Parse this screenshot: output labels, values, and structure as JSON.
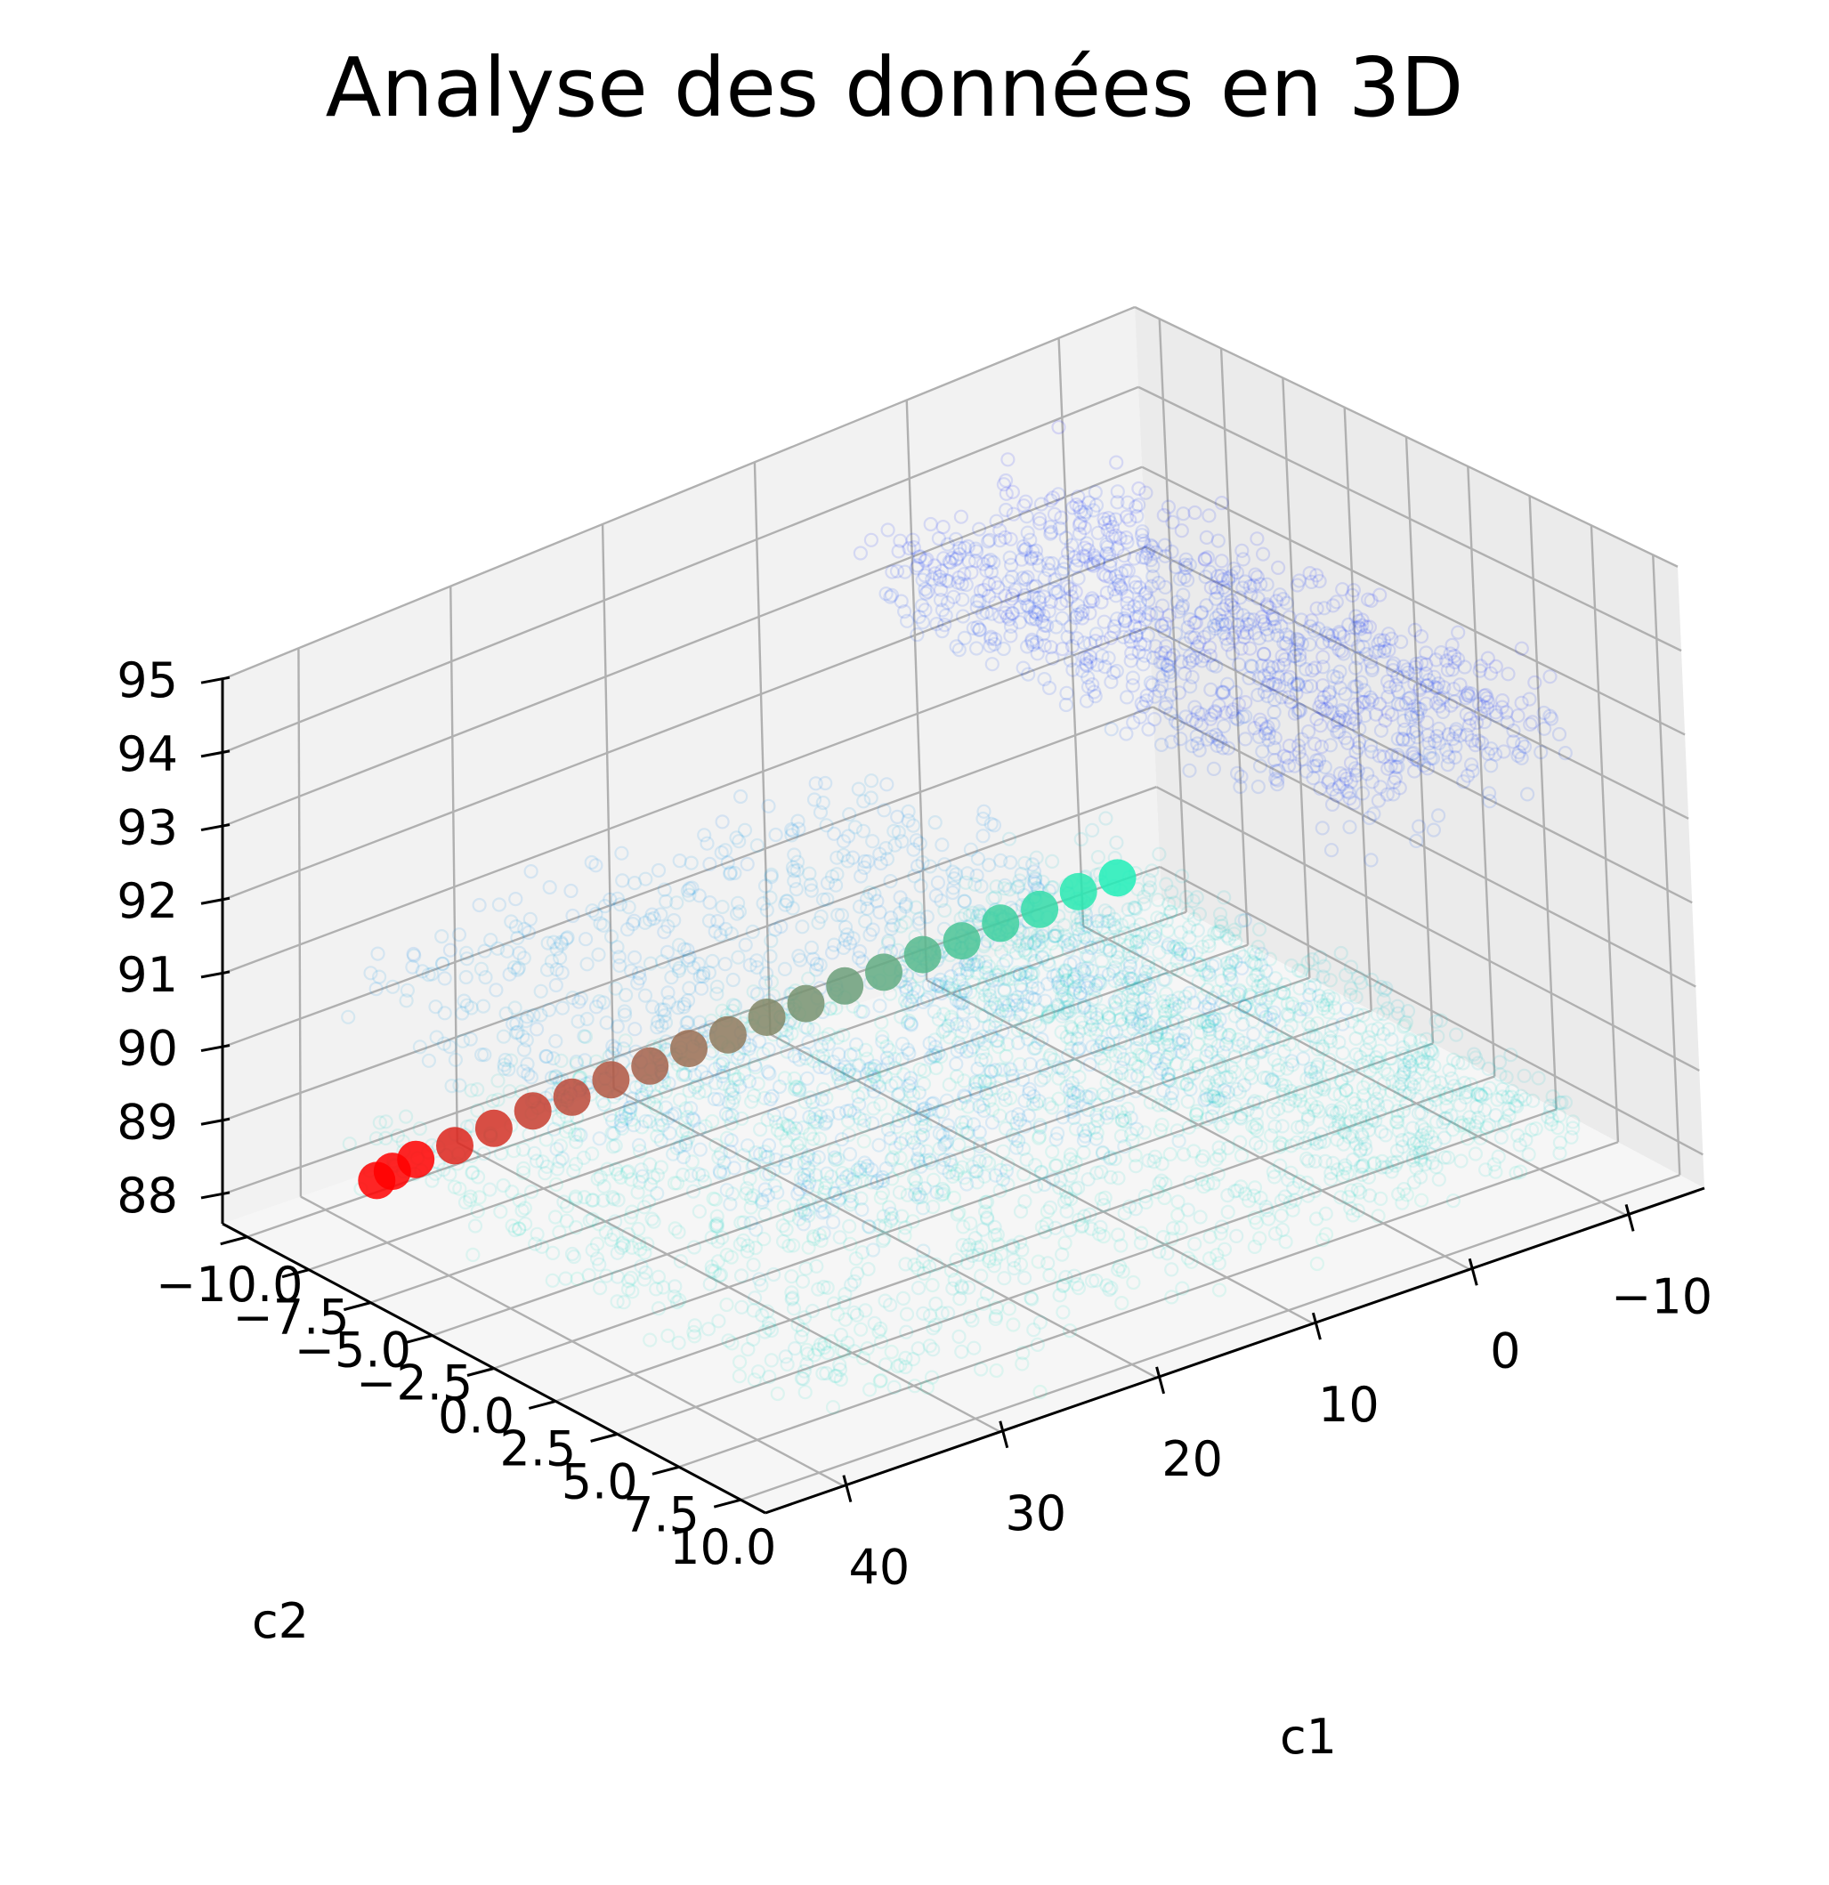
{
  "chart_data": {
    "type": "scatter",
    "projection": "3d",
    "title": "Analyse des données en 3D",
    "xlabel": "c1",
    "ylabel": "c2",
    "zlabel": "",
    "xlim": [
      -15,
      45
    ],
    "ylim": [
      -11,
      11
    ],
    "zlim": [
      87.6,
      95
    ],
    "x_ticks": [
      -10,
      0,
      10,
      20,
      30,
      40
    ],
    "x_tick_labels": [
      "−10",
      "0",
      "10",
      "20",
      "30",
      "40"
    ],
    "y_ticks": [
      -10,
      -7.5,
      -5,
      -2.5,
      0,
      2.5,
      5,
      7.5,
      10
    ],
    "y_tick_labels": [
      "−10.0",
      "−7.5",
      "−5.0",
      "−2.5",
      "0.0",
      "2.5",
      "5.0",
      "7.5",
      "10.0"
    ],
    "z_ticks": [
      88,
      89,
      90,
      91,
      92,
      93,
      94,
      95
    ],
    "z_tick_labels": [
      "88",
      "89",
      "90",
      "91",
      "92",
      "93",
      "94",
      "95"
    ],
    "grid": true,
    "colormap": [
      "#0000ff",
      "#0088ee",
      "#22f0b8",
      "#ff0000"
    ],
    "series": [
      {
        "marker": "scatter-cloud",
        "color_scale": "z",
        "regions": [
          {
            "x_range": [
              -10,
              5
            ],
            "y_range": [
              -10,
              10
            ],
            "z_center": 93.3,
            "z_spread": 0.6
          },
          {
            "x_range": [
              5,
              40
            ],
            "y_range": [
              -10,
              10
            ],
            "z_center": 90.6,
            "z_spread": 0.6
          },
          {
            "x_range": [
              -10,
              5
            ],
            "y_range": [
              -10,
              10
            ],
            "z_center": 88.6,
            "z_spread": 0.45
          },
          {
            "x_range": [
              5,
              40
            ],
            "y_range": [
              -10,
              10
            ],
            "z_center": 88.4,
            "z_spread": 0.4
          }
        ]
      },
      {
        "marker": "large-dot",
        "x": [
          -10.0,
          -7.5,
          -5.0,
          -2.5,
          0.0,
          2.5,
          5.0,
          7.5,
          10.0,
          12.5,
          15.0,
          17.5,
          20.0,
          22.5,
          25.0,
          27.5,
          30.0,
          32.5,
          35.0,
          36.5,
          37.5
        ],
        "y": [
          -9.5,
          -9.5,
          -9.5,
          -9.5,
          -9.5,
          -9.5,
          -9.5,
          -9.5,
          -9.5,
          -9.5,
          -9.5,
          -9.5,
          -9.5,
          -9.5,
          -9.5,
          -9.5,
          -9.5,
          -9.5,
          -9.5,
          -9.5,
          -9.5
        ],
        "z": [
          88.45,
          88.45,
          88.4,
          88.4,
          88.35,
          88.35,
          88.3,
          88.3,
          88.25,
          88.25,
          88.2,
          88.2,
          88.15,
          88.15,
          88.1,
          88.1,
          88.05,
          88.0,
          88.0,
          87.95,
          87.9
        ]
      }
    ]
  }
}
